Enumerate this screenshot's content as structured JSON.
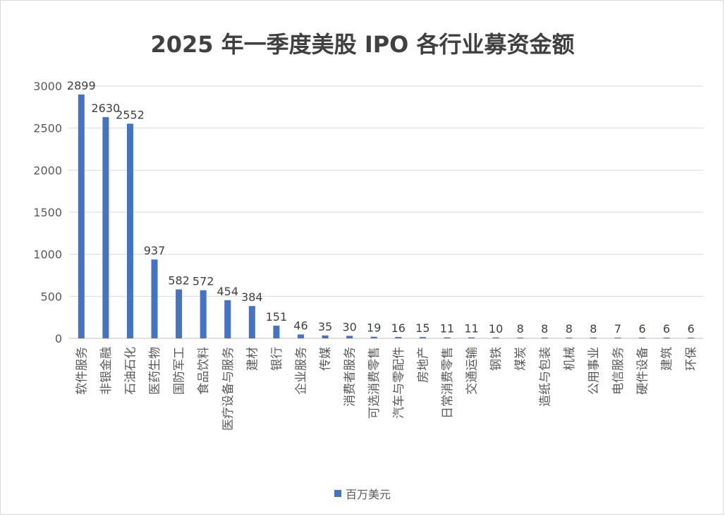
{
  "chart_data": {
    "type": "bar",
    "title": "2025 年一季度美股 IPO 各行业募资金额",
    "categories": [
      "软件服务",
      "非银金融",
      "石油石化",
      "医药生物",
      "国防军工",
      "食品饮料",
      "医疗设备与服务",
      "建材",
      "银行",
      "企业服务",
      "传媒",
      "消费者服务",
      "可选消费零售",
      "汽车与零配件",
      "房地产",
      "日常消费零售",
      "交通运输",
      "钢铁",
      "煤炭",
      "造纸与包装",
      "机械",
      "公用事业",
      "电信服务",
      "硬件设备",
      "建筑",
      "环保"
    ],
    "series": [
      {
        "name": "百万美元",
        "values": [
          2899,
          2630,
          2552,
          937,
          582,
          572,
          454,
          384,
          151,
          46,
          35,
          30,
          19,
          16,
          15,
          11,
          11,
          10,
          8,
          8,
          8,
          8,
          7,
          6,
          6,
          6
        ]
      }
    ],
    "ylim": [
      0,
      3000
    ],
    "yticks": [
      0,
      500,
      1000,
      1500,
      2000,
      2500,
      3000
    ],
    "grid": true,
    "data_labels": true,
    "legend_position": "bottom",
    "bar_color": "#4472c4"
  }
}
